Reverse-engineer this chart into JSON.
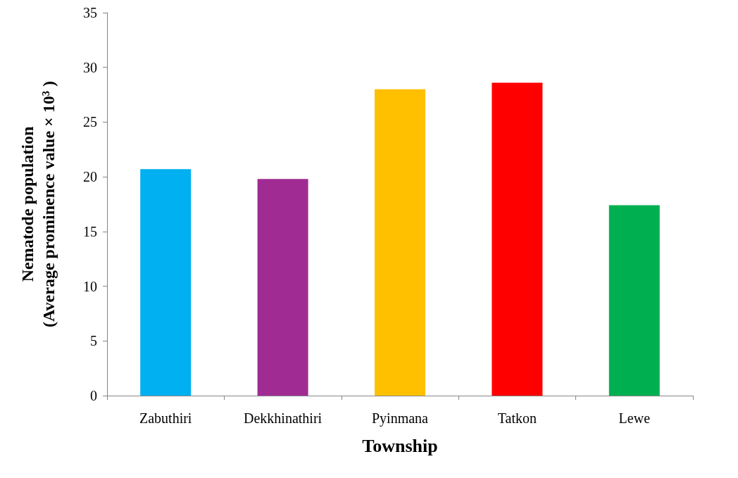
{
  "chart_data": {
    "type": "bar",
    "xlabel": "Township",
    "ylabel": "Nematode population\n(Average prominence value × 10³ )",
    "categories": [
      "Zabuthiri",
      "Dekkhinathiri",
      "Pyinmana",
      "Tatkon",
      "Lewe"
    ],
    "values": [
      20.7,
      19.8,
      28.0,
      28.6,
      17.4
    ],
    "colors": [
      "#00b0f0",
      "#a02b93",
      "#ffc000",
      "#ff0000",
      "#00b050"
    ],
    "ylim": [
      0,
      35
    ],
    "yticks": [
      0,
      5,
      10,
      15,
      20,
      25,
      30,
      35
    ],
    "grid": false
  }
}
